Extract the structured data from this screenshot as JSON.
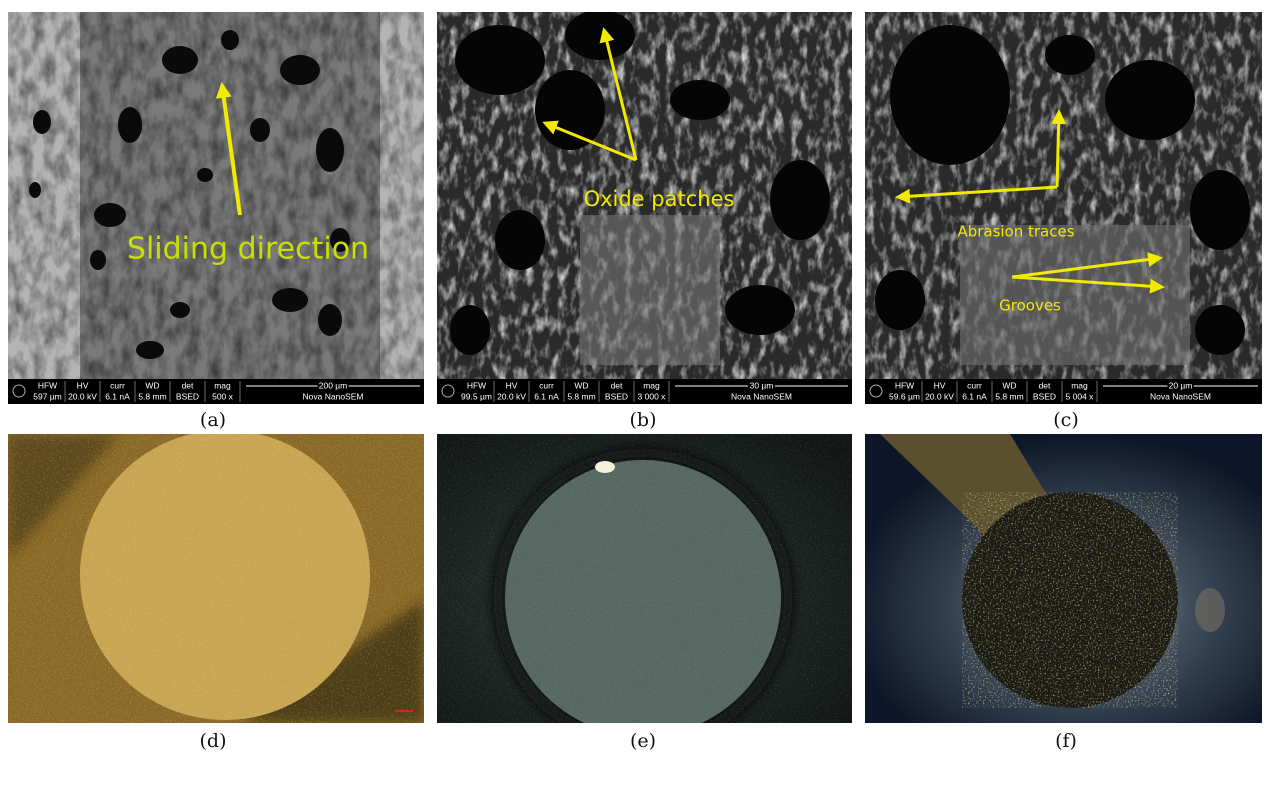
{
  "sem_headers": [
    "HFW",
    "HV",
    "curr",
    "WD",
    "det",
    "mag"
  ],
  "panels": [
    {
      "caption": "(a)",
      "annotations": [
        "Sliding direction"
      ],
      "databar": {
        "values": [
          "597 µm",
          "20.0 kV",
          "6.1 nA",
          "5.8 mm",
          "BSED",
          "500 x"
        ],
        "scale": "200 µm",
        "instrument": "Nova NanoSEM"
      }
    },
    {
      "caption": "(b)",
      "annotations": [
        "Oxide patches"
      ],
      "databar": {
        "values": [
          "99.5 µm",
          "20.0 kV",
          "6.1 nA",
          "5.8 mm",
          "BSED",
          "3 000 x"
        ],
        "scale": "30 µm",
        "instrument": "Nova NanoSEM"
      }
    },
    {
      "caption": "(c)",
      "annotations": [
        "Abrasion traces",
        "Grooves"
      ],
      "databar": {
        "values": [
          "59.6 µm",
          "20.0 kV",
          "6.1 nA",
          "5.8 mm",
          "BSED",
          "5 004 x"
        ],
        "scale": "20 µm",
        "instrument": "Nova NanoSEM"
      }
    },
    {
      "caption": "(d)"
    },
    {
      "caption": "(e)"
    },
    {
      "caption": "(f)"
    }
  ]
}
